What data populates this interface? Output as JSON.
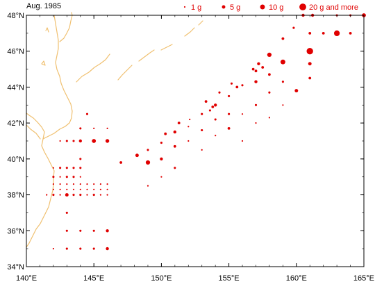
{
  "title": "Aug. 1985",
  "colors": {
    "dot": "#e00000",
    "coast": "#f0c070",
    "frame": "#000000"
  },
  "legend": [
    {
      "label": "1 g",
      "value": 1
    },
    {
      "label": "5 g",
      "value": 5
    },
    {
      "label": "10 g",
      "value": 10
    },
    {
      "label": "20 g and more",
      "value": 20
    }
  ],
  "chart_data": {
    "type": "scatter",
    "xlim": [
      140,
      165
    ],
    "ylim": [
      34,
      48
    ],
    "x_ticks": [
      {
        "value": 140,
        "label": "140°E"
      },
      {
        "value": 145,
        "label": "145°E"
      },
      {
        "value": 150,
        "label": "150°E"
      },
      {
        "value": 155,
        "label": "155°E"
      },
      {
        "value": 160,
        "label": "160°E"
      },
      {
        "value": 165,
        "label": "165°E"
      }
    ],
    "y_ticks": [
      {
        "value": 34,
        "label": "34°N"
      },
      {
        "value": 36,
        "label": "36°N"
      },
      {
        "value": 38,
        "label": "38°N"
      },
      {
        "value": 40,
        "label": "40°N"
      },
      {
        "value": 42,
        "label": "42°N"
      },
      {
        "value": 44,
        "label": "44°N"
      },
      {
        "value": 46,
        "label": "46°N"
      },
      {
        "value": 48,
        "label": "48°N"
      }
    ],
    "points": [
      {
        "lon": 142.0,
        "lat": 35.0,
        "g": 1
      },
      {
        "lon": 143.0,
        "lat": 35.0,
        "g": 2
      },
      {
        "lon": 144.0,
        "lat": 35.0,
        "g": 2
      },
      {
        "lon": 145.0,
        "lat": 35.0,
        "g": 2
      },
      {
        "lon": 146.0,
        "lat": 35.0,
        "g": 4
      },
      {
        "lon": 143.0,
        "lat": 36.0,
        "g": 2
      },
      {
        "lon": 144.0,
        "lat": 36.0,
        "g": 2
      },
      {
        "lon": 145.0,
        "lat": 36.0,
        "g": 2
      },
      {
        "lon": 146.0,
        "lat": 36.0,
        "g": 4
      },
      {
        "lon": 143.0,
        "lat": 37.0,
        "g": 2
      },
      {
        "lon": 141.5,
        "lat": 38.0,
        "g": 1
      },
      {
        "lon": 142.0,
        "lat": 38.0,
        "g": 2
      },
      {
        "lon": 142.5,
        "lat": 38.0,
        "g": 1
      },
      {
        "lon": 143.0,
        "lat": 38.0,
        "g": 5
      },
      {
        "lon": 143.5,
        "lat": 38.0,
        "g": 2
      },
      {
        "lon": 144.0,
        "lat": 38.0,
        "g": 2
      },
      {
        "lon": 144.5,
        "lat": 38.0,
        "g": 1
      },
      {
        "lon": 145.0,
        "lat": 38.0,
        "g": 2
      },
      {
        "lon": 145.5,
        "lat": 38.0,
        "g": 1
      },
      {
        "lon": 146.0,
        "lat": 38.0,
        "g": 1
      },
      {
        "lon": 142.0,
        "lat": 38.3,
        "g": 1
      },
      {
        "lon": 142.5,
        "lat": 38.3,
        "g": 1
      },
      {
        "lon": 143.0,
        "lat": 38.3,
        "g": 1
      },
      {
        "lon": 143.5,
        "lat": 38.3,
        "g": 1
      },
      {
        "lon": 144.0,
        "lat": 38.3,
        "g": 1
      },
      {
        "lon": 144.5,
        "lat": 38.3,
        "g": 1
      },
      {
        "lon": 145.0,
        "lat": 38.3,
        "g": 1
      },
      {
        "lon": 145.5,
        "lat": 38.3,
        "g": 1
      },
      {
        "lon": 146.0,
        "lat": 38.3,
        "g": 1
      },
      {
        "lon": 142.0,
        "lat": 38.6,
        "g": 1
      },
      {
        "lon": 142.5,
        "lat": 38.6,
        "g": 1
      },
      {
        "lon": 143.0,
        "lat": 38.6,
        "g": 1
      },
      {
        "lon": 143.5,
        "lat": 38.6,
        "g": 1
      },
      {
        "lon": 144.0,
        "lat": 38.6,
        "g": 1
      },
      {
        "lon": 144.5,
        "lat": 38.6,
        "g": 1
      },
      {
        "lon": 145.0,
        "lat": 38.6,
        "g": 1
      },
      {
        "lon": 145.5,
        "lat": 38.6,
        "g": 1
      },
      {
        "lon": 146.0,
        "lat": 38.6,
        "g": 1
      },
      {
        "lon": 142.0,
        "lat": 39.0,
        "g": 2
      },
      {
        "lon": 142.5,
        "lat": 39.0,
        "g": 1
      },
      {
        "lon": 143.0,
        "lat": 39.0,
        "g": 2
      },
      {
        "lon": 143.5,
        "lat": 39.0,
        "g": 2
      },
      {
        "lon": 144.0,
        "lat": 39.0,
        "g": 1
      },
      {
        "lon": 142.0,
        "lat": 39.5,
        "g": 1
      },
      {
        "lon": 142.5,
        "lat": 39.5,
        "g": 2
      },
      {
        "lon": 143.0,
        "lat": 39.5,
        "g": 2
      },
      {
        "lon": 143.5,
        "lat": 39.5,
        "g": 2
      },
      {
        "lon": 144.0,
        "lat": 39.5,
        "g": 2
      },
      {
        "lon": 144.0,
        "lat": 40.0,
        "g": 2
      },
      {
        "lon": 142.5,
        "lat": 41.0,
        "g": 1
      },
      {
        "lon": 143.0,
        "lat": 41.0,
        "g": 2
      },
      {
        "lon": 143.5,
        "lat": 41.0,
        "g": 2
      },
      {
        "lon": 144.0,
        "lat": 41.0,
        "g": 4
      },
      {
        "lon": 145.0,
        "lat": 41.0,
        "g": 7
      },
      {
        "lon": 146.0,
        "lat": 41.0,
        "g": 6
      },
      {
        "lon": 144.0,
        "lat": 41.7,
        "g": 2
      },
      {
        "lon": 145.0,
        "lat": 41.7,
        "g": 1
      },
      {
        "lon": 146.0,
        "lat": 41.7,
        "g": 1
      },
      {
        "lon": 144.5,
        "lat": 42.5,
        "g": 2
      },
      {
        "lon": 147.0,
        "lat": 39.8,
        "g": 3
      },
      {
        "lon": 148.2,
        "lat": 40.2,
        "g": 5
      },
      {
        "lon": 149.0,
        "lat": 39.8,
        "g": 8
      },
      {
        "lon": 149.0,
        "lat": 40.5,
        "g": 2
      },
      {
        "lon": 149.0,
        "lat": 38.5,
        "g": 1
      },
      {
        "lon": 150.0,
        "lat": 40.0,
        "g": 4
      },
      {
        "lon": 150.0,
        "lat": 39.0,
        "g": 1
      },
      {
        "lon": 150.0,
        "lat": 40.9,
        "g": 2
      },
      {
        "lon": 150.3,
        "lat": 41.4,
        "g": 3
      },
      {
        "lon": 151.0,
        "lat": 41.5,
        "g": 4
      },
      {
        "lon": 151.0,
        "lat": 40.7,
        "g": 3
      },
      {
        "lon": 151.0,
        "lat": 39.5,
        "g": 2
      },
      {
        "lon": 151.3,
        "lat": 42.0,
        "g": 3
      },
      {
        "lon": 152.0,
        "lat": 41.8,
        "g": 1
      },
      {
        "lon": 152.0,
        "lat": 41.0,
        "g": 1
      },
      {
        "lon": 152.1,
        "lat": 42.2,
        "g": 1
      },
      {
        "lon": 153.0,
        "lat": 42.5,
        "g": 2
      },
      {
        "lon": 153.0,
        "lat": 41.6,
        "g": 2
      },
      {
        "lon": 153.0,
        "lat": 40.5,
        "g": 1
      },
      {
        "lon": 153.3,
        "lat": 43.2,
        "g": 3
      },
      {
        "lon": 153.6,
        "lat": 42.7,
        "g": 2
      },
      {
        "lon": 153.8,
        "lat": 42.9,
        "g": 3
      },
      {
        "lon": 154.0,
        "lat": 43.0,
        "g": 4
      },
      {
        "lon": 154.0,
        "lat": 42.2,
        "g": 2
      },
      {
        "lon": 154.0,
        "lat": 41.3,
        "g": 1
      },
      {
        "lon": 154.3,
        "lat": 43.7,
        "g": 2
      },
      {
        "lon": 155.0,
        "lat": 43.5,
        "g": 2
      },
      {
        "lon": 155.0,
        "lat": 42.5,
        "g": 2
      },
      {
        "lon": 155.0,
        "lat": 41.7,
        "g": 3
      },
      {
        "lon": 155.2,
        "lat": 44.2,
        "g": 2
      },
      {
        "lon": 155.6,
        "lat": 44.0,
        "g": 3
      },
      {
        "lon": 156.0,
        "lat": 44.1,
        "g": 2
      },
      {
        "lon": 156.0,
        "lat": 42.5,
        "g": 1
      },
      {
        "lon": 156.0,
        "lat": 41.0,
        "g": 1
      },
      {
        "lon": 156.8,
        "lat": 45.0,
        "g": 3
      },
      {
        "lon": 157.0,
        "lat": 44.9,
        "g": 3
      },
      {
        "lon": 157.0,
        "lat": 44.3,
        "g": 4
      },
      {
        "lon": 157.0,
        "lat": 43.0,
        "g": 2
      },
      {
        "lon": 157.0,
        "lat": 42.0,
        "g": 1
      },
      {
        "lon": 157.2,
        "lat": 45.3,
        "g": 4
      },
      {
        "lon": 157.5,
        "lat": 45.1,
        "g": 3
      },
      {
        "lon": 158.0,
        "lat": 45.8,
        "g": 8
      },
      {
        "lon": 158.0,
        "lat": 44.7,
        "g": 3
      },
      {
        "lon": 158.0,
        "lat": 43.7,
        "g": 2
      },
      {
        "lon": 158.0,
        "lat": 42.3,
        "g": 1
      },
      {
        "lon": 159.0,
        "lat": 46.7,
        "g": 3
      },
      {
        "lon": 159.0,
        "lat": 45.4,
        "g": 10
      },
      {
        "lon": 159.0,
        "lat": 44.3,
        "g": 2
      },
      {
        "lon": 159.0,
        "lat": 43.0,
        "g": 1
      },
      {
        "lon": 159.8,
        "lat": 47.3,
        "g": 2
      },
      {
        "lon": 160.0,
        "lat": 43.8,
        "g": 5
      },
      {
        "lon": 160.5,
        "lat": 48.0,
        "g": 4
      },
      {
        "lon": 161.0,
        "lat": 47.0,
        "g": 3
      },
      {
        "lon": 161.0,
        "lat": 46.0,
        "g": 18
      },
      {
        "lon": 161.0,
        "lat": 45.3,
        "g": 5
      },
      {
        "lon": 161.0,
        "lat": 44.5,
        "g": 3
      },
      {
        "lon": 161.2,
        "lat": 48.0,
        "g": 4
      },
      {
        "lon": 162.0,
        "lat": 47.0,
        "g": 3
      },
      {
        "lon": 163.0,
        "lat": 48.0,
        "g": 2
      },
      {
        "lon": 163.0,
        "lat": 47.0,
        "g": 14
      },
      {
        "lon": 164.0,
        "lat": 48.0,
        "g": 2
      },
      {
        "lon": 164.0,
        "lat": 47.0,
        "g": 3
      },
      {
        "lon": 165.0,
        "lat": 48.0,
        "g": 7
      }
    ]
  }
}
